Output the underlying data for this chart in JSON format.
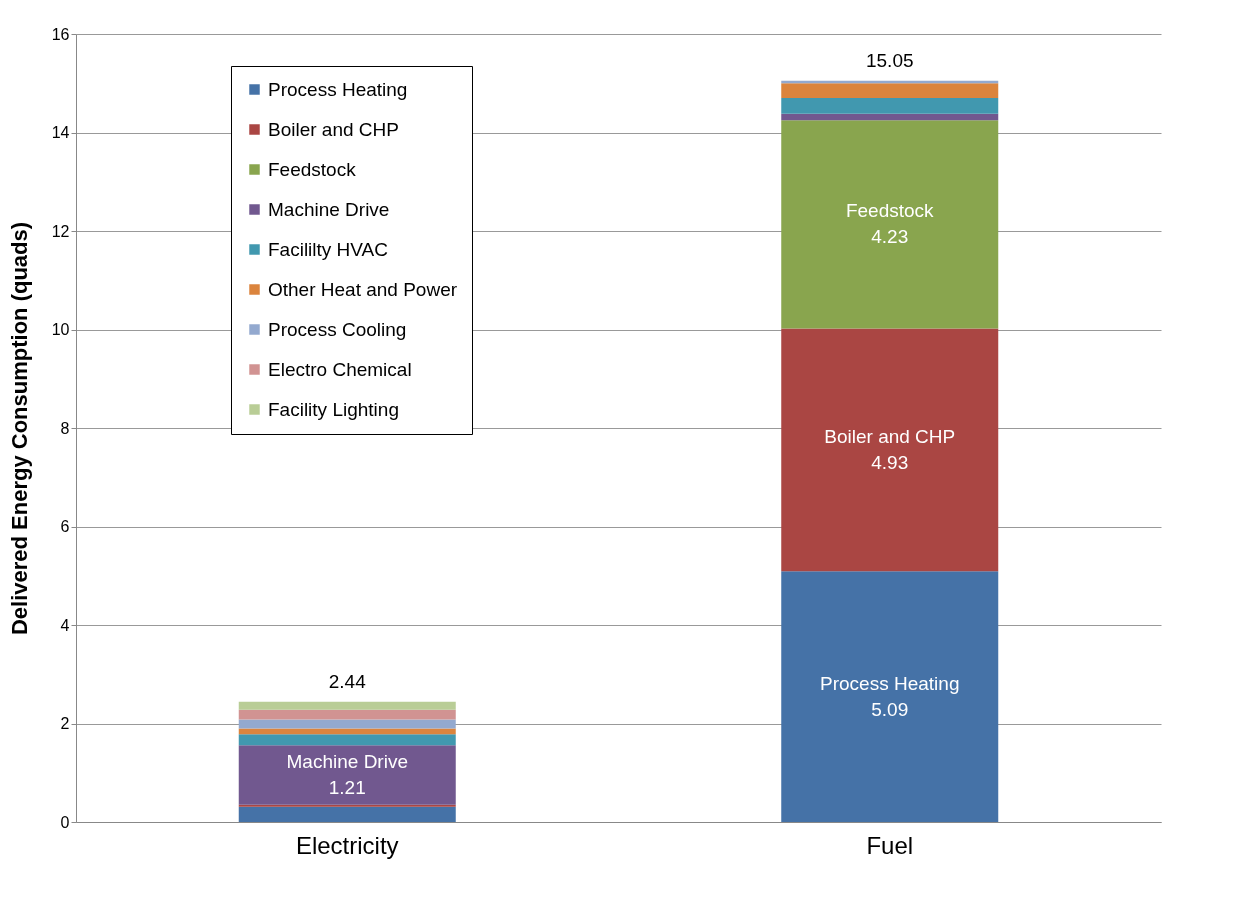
{
  "chart_data": {
    "type": "bar",
    "stacked": true,
    "ylabel": "Delivered Energy Consumption (quads)",
    "categories": [
      "Electricity",
      "Fuel"
    ],
    "series": [
      {
        "name": "Process Heating",
        "color": "#4572a7",
        "values": [
          0.31,
          5.09
        ],
        "value_labels": [
          null,
          "5.09"
        ]
      },
      {
        "name": "Boiler and CHP",
        "color": "#aa4643",
        "values": [
          0.04,
          4.93
        ],
        "value_labels": [
          null,
          "4.93"
        ]
      },
      {
        "name": "Feedstock",
        "color": "#89a54e",
        "values": [
          0,
          4.23
        ],
        "value_labels": [
          null,
          "4.23"
        ]
      },
      {
        "name": "Machine Drive",
        "color": "#71588f",
        "values": [
          1.21,
          0.13
        ],
        "value_labels": [
          "1.21",
          null
        ]
      },
      {
        "name": "Facililty HVAC",
        "color": "#4198af",
        "values": [
          0.22,
          0.32
        ],
        "value_labels": [
          null,
          null
        ]
      },
      {
        "name": "Other Heat and Power",
        "color": "#db843d",
        "values": [
          0.12,
          0.3
        ],
        "value_labels": [
          null,
          null
        ]
      },
      {
        "name": "Process Cooling",
        "color": "#93a9cf",
        "values": [
          0.18,
          0.05
        ],
        "value_labels": [
          null,
          null
        ]
      },
      {
        "name": "Electro Chemical",
        "color": "#d19392",
        "values": [
          0.2,
          0
        ],
        "value_labels": [
          null,
          null
        ]
      },
      {
        "name": "Facility Lighting",
        "color": "#b9cd96",
        "values": [
          0.16,
          0
        ],
        "value_labels": [
          null,
          null
        ]
      }
    ],
    "totals": [
      "2.44",
      "15.05"
    ],
    "ylim": [
      0,
      16
    ],
    "yticks": [
      0,
      2,
      4,
      6,
      8,
      10,
      12,
      14,
      16
    ],
    "grid": "y",
    "legend": "top left"
  }
}
